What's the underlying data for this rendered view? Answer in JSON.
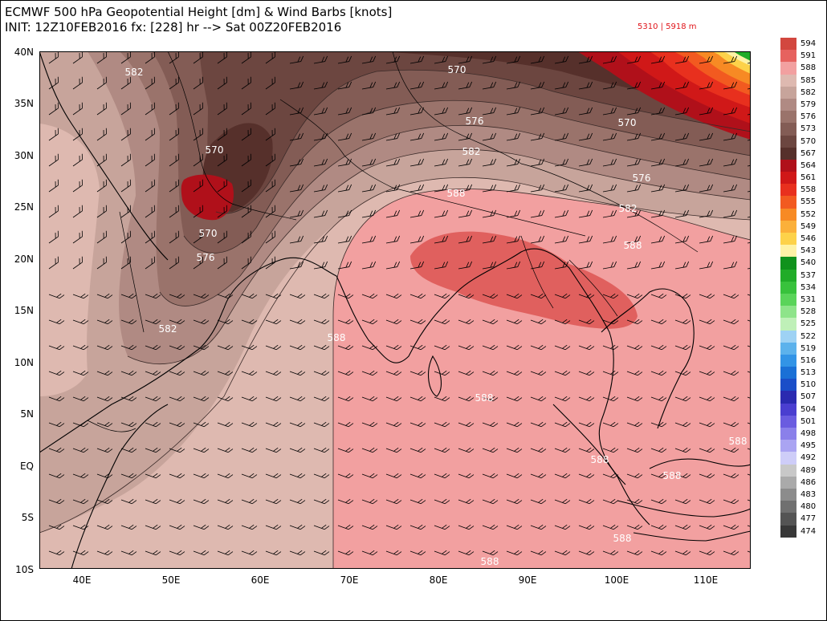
{
  "header": {
    "line1": "ECMWF 500 hPa Geopotential Height [dm] & Wind Barbs [knots]",
    "line2": "INIT: 12Z10FEB2016 fx: [228] hr --> Sat 00Z20FEB2016",
    "range_text": "5310 | 5918 m"
  },
  "axes": {
    "y_labels": [
      "40N",
      "35N",
      "30N",
      "25N",
      "20N",
      "15N",
      "10N",
      "5N",
      "EQ",
      "5S",
      "10S"
    ],
    "x_labels": [
      "40E",
      "50E",
      "60E",
      "70E",
      "80E",
      "90E",
      "100E",
      "110E"
    ]
  },
  "contour_labels": [
    {
      "id": "c1",
      "text": "582"
    },
    {
      "id": "c2",
      "text": "570"
    },
    {
      "id": "c3",
      "text": "570"
    },
    {
      "id": "c4",
      "text": "576"
    },
    {
      "id": "c5",
      "text": "582"
    },
    {
      "id": "c6",
      "text": "570"
    },
    {
      "id": "c7",
      "text": "576"
    },
    {
      "id": "c8",
      "text": "588"
    },
    {
      "id": "c9",
      "text": "582"
    },
    {
      "id": "c10",
      "text": "588"
    },
    {
      "id": "c11",
      "text": "570"
    },
    {
      "id": "c12",
      "text": "576"
    },
    {
      "id": "c13",
      "text": "582"
    },
    {
      "id": "c14",
      "text": "588"
    },
    {
      "id": "c15",
      "text": "588"
    },
    {
      "id": "c16",
      "text": "588"
    },
    {
      "id": "c17",
      "text": "588"
    },
    {
      "id": "c18",
      "text": "588"
    },
    {
      "id": "c19",
      "text": "588"
    },
    {
      "id": "c20",
      "text": "588"
    }
  ],
  "colorbar": [
    {
      "label": "594",
      "color": "#d2473f"
    },
    {
      "label": "591",
      "color": "#e6625f"
    },
    {
      "label": "588",
      "color": "#f2a0a0"
    },
    {
      "label": "585",
      "color": "#deb9b0"
    },
    {
      "label": "582",
      "color": "#c7a49b"
    },
    {
      "label": "579",
      "color": "#b08a83"
    },
    {
      "label": "576",
      "color": "#9a736b"
    },
    {
      "label": "573",
      "color": "#835c55"
    },
    {
      "label": "570",
      "color": "#6c4640"
    },
    {
      "label": "567",
      "color": "#56302b"
    },
    {
      "label": "564",
      "color": "#b0101a"
    },
    {
      "label": "561",
      "color": "#d01818"
    },
    {
      "label": "558",
      "color": "#e8301e"
    },
    {
      "label": "555",
      "color": "#f25a20"
    },
    {
      "label": "552",
      "color": "#f78a24"
    },
    {
      "label": "549",
      "color": "#fbb03a"
    },
    {
      "label": "546",
      "color": "#fdd24a"
    },
    {
      "label": "543",
      "color": "#fef2a6"
    },
    {
      "label": "540",
      "color": "#10921c"
    },
    {
      "label": "537",
      "color": "#20ac28"
    },
    {
      "label": "534",
      "color": "#38c23c"
    },
    {
      "label": "531",
      "color": "#5ad45a"
    },
    {
      "label": "528",
      "color": "#8ee48a"
    },
    {
      "label": "525",
      "color": "#bff0b8"
    },
    {
      "label": "522",
      "color": "#9ed2f4"
    },
    {
      "label": "519",
      "color": "#5cb2ec"
    },
    {
      "label": "516",
      "color": "#3294e6"
    },
    {
      "label": "513",
      "color": "#1a70d6"
    },
    {
      "label": "510",
      "color": "#1a4ec8"
    },
    {
      "label": "507",
      "color": "#2a2ab0"
    },
    {
      "label": "504",
      "color": "#4a3ed0"
    },
    {
      "label": "501",
      "color": "#6a5ce0"
    },
    {
      "label": "498",
      "color": "#8a80ea"
    },
    {
      "label": "495",
      "color": "#aaa4f2"
    },
    {
      "label": "492",
      "color": "#cecdf8"
    },
    {
      "label": "489",
      "color": "#c8c8c8"
    },
    {
      "label": "486",
      "color": "#aaaaaa"
    },
    {
      "label": "483",
      "color": "#8c8c8c"
    },
    {
      "label": "480",
      "color": "#707070"
    },
    {
      "label": "477",
      "color": "#545454"
    },
    {
      "label": "474",
      "color": "#383838"
    }
  ]
}
